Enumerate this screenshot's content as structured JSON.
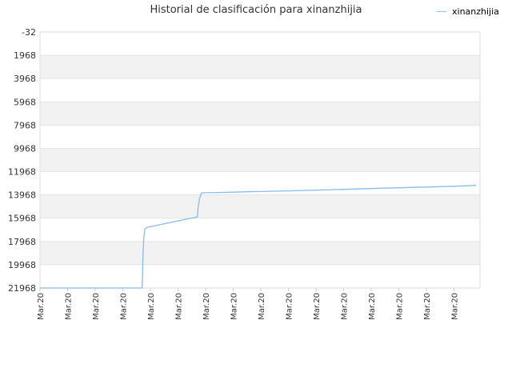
{
  "chart_data": {
    "type": "line",
    "title": "Historial de clasificación para xinanzhijia",
    "xlabel": "",
    "ylabel": "",
    "y_inverted": true,
    "ylim": [
      -32,
      21968
    ],
    "y_ticks": [
      "-32",
      "1968",
      "3968",
      "5968",
      "7968",
      "9968",
      "11968",
      "13968",
      "15968",
      "17968",
      "19968",
      "21968"
    ],
    "x_ticks": [
      "Mar.20",
      "Mar.20",
      "Mar.20",
      "Mar.20",
      "Mar.20",
      "Mar.20",
      "Mar.20",
      "Mar.20",
      "Mar.20",
      "Mar.20",
      "Mar.20",
      "Mar.20",
      "Mar.20",
      "Mar.20",
      "Mar.20",
      "Mar.20"
    ],
    "grid": true,
    "legend_position": "top-right",
    "series": [
      {
        "name": "xinanzhijia",
        "color": "#88bbee",
        "x": [
          0,
          1,
          2,
          3,
          3.7,
          3.73,
          3.76,
          3.8,
          3.9,
          4.2,
          4.6,
          5.0,
          5.4,
          5.7,
          5.73,
          5.78,
          5.85,
          6.0,
          6.5,
          7.0,
          7.5,
          8.0,
          8.5,
          9.0,
          9.5,
          10.0,
          10.5,
          11.0,
          11.5,
          12.0,
          12.5,
          13.0,
          13.5,
          14.0,
          14.5,
          15.0,
          15.5,
          15.8
        ],
        "y": [
          21968,
          21968,
          21968,
          21968,
          21968,
          19200,
          17700,
          16900,
          16750,
          16600,
          16400,
          16200,
          16000,
          15860,
          15000,
          14300,
          13800,
          13780,
          13760,
          13730,
          13700,
          13680,
          13650,
          13620,
          13590,
          13560,
          13520,
          13490,
          13460,
          13420,
          13390,
          13360,
          13320,
          13290,
          13260,
          13220,
          13180,
          13150
        ]
      }
    ]
  }
}
